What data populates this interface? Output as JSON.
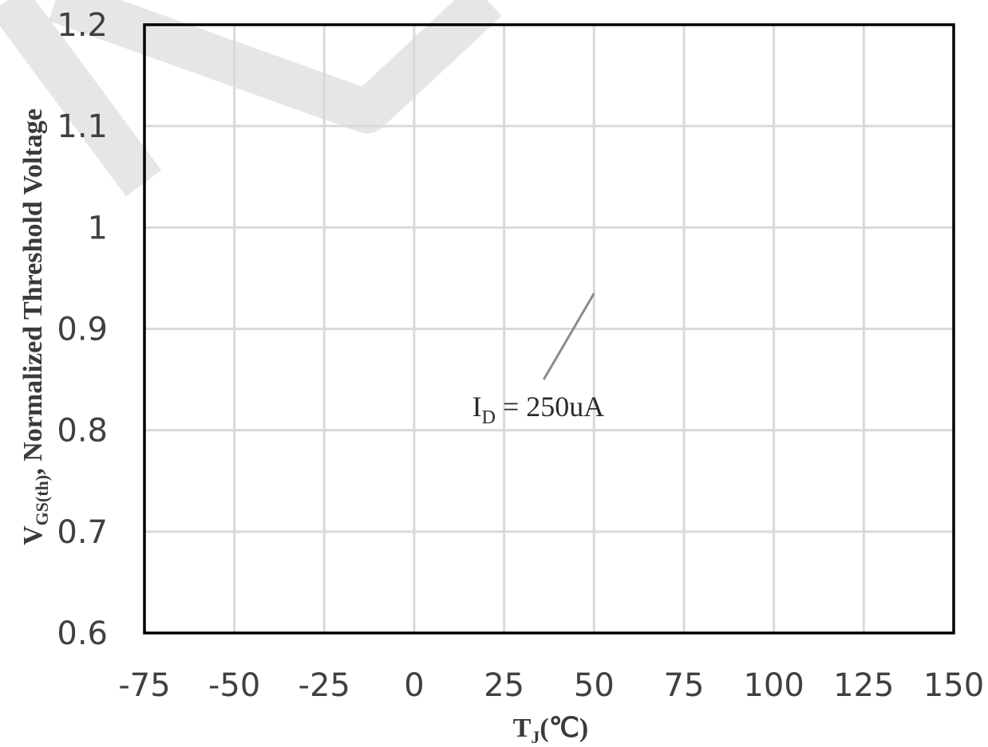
{
  "chart_data": {
    "type": "line",
    "title": "",
    "xlabel": {
      "main": "T",
      "sub": "J",
      "suffix": "(℃)"
    },
    "ylabel": {
      "main": "V",
      "sub": "GS(th)",
      "suffix": ", Normalized Threshold Voltage"
    },
    "xlim": [
      -75,
      150
    ],
    "ylim": [
      0.6,
      1.2
    ],
    "x_ticks": [
      -75,
      -50,
      -25,
      0,
      25,
      50,
      75,
      100,
      125,
      150
    ],
    "x_tick_labels": [
      "-75",
      "-50",
      "-25",
      "0",
      "25",
      "50",
      "75",
      "100",
      "125",
      "150"
    ],
    "y_ticks": [
      0.6,
      0.7,
      0.8,
      0.9,
      1.0,
      1.1,
      1.2
    ],
    "y_tick_labels": [
      "0.6",
      "0.7",
      "0.8",
      "0.9",
      "1",
      "1.1",
      "1.2"
    ],
    "grid": true,
    "series": [],
    "annotations": [
      {
        "main": "I",
        "sub": "D",
        "suffix": " = 250uA",
        "x": 25,
        "y": 0.82,
        "pointer_to": [
          50,
          0.935
        ]
      }
    ]
  }
}
